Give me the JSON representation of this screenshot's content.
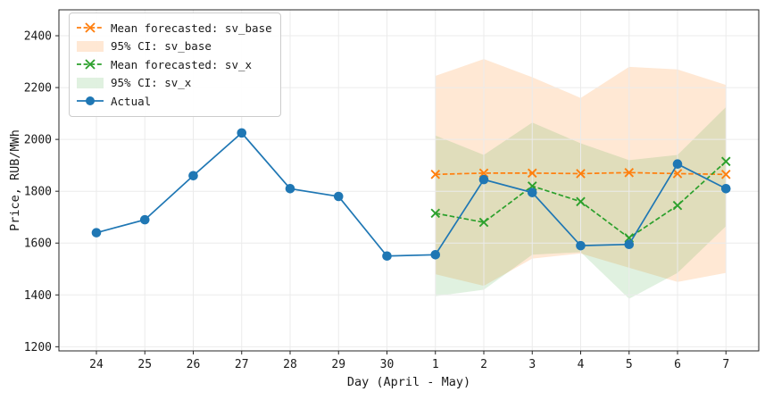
{
  "chart_data": {
    "type": "line",
    "title": "",
    "xlabel": "Day (April - May)",
    "ylabel": "Price, RUB/MWh",
    "x_tick_labels": [
      "24",
      "25",
      "26",
      "27",
      "28",
      "29",
      "30",
      "1",
      "2",
      "3",
      "4",
      "5",
      "6",
      "7"
    ],
    "y_ticks": [
      1200,
      1400,
      1600,
      1800,
      2000,
      2200,
      2400
    ],
    "ylim": [
      1184,
      2500
    ],
    "grid": true,
    "legend_position": "upper left",
    "forecast_start_index": 7,
    "colors": {
      "actual": "#1f77b4",
      "sv_base": "#ff7f0e",
      "sv_x": "#2ca02c",
      "grid": "#ebebeb",
      "spine": "#262626",
      "ci_base_fill_on_white": "#fbe5d6",
      "ci_x_fill_on_white": "#e5f1e3"
    },
    "bands": [
      {
        "name": "95% CI: sv_base",
        "color": "#ff7f0e",
        "opacity": 0.18,
        "start_index": 7,
        "upper": [
          2245,
          2310,
          2240,
          2160,
          2280,
          2270,
          2210
        ],
        "lower": [
          1480,
          1435,
          1540,
          1560,
          1505,
          1450,
          1485
        ]
      },
      {
        "name": "95% CI: sv_x",
        "color": "#2ca02c",
        "opacity": 0.15,
        "start_index": 7,
        "upper": [
          2015,
          1940,
          2065,
          1985,
          1920,
          1940,
          2125
        ],
        "lower": [
          1395,
          1420,
          1555,
          1565,
          1385,
          1485,
          1665
        ]
      }
    ],
    "series": [
      {
        "name": "Mean forecasted: sv_base",
        "color": "#ff7f0e",
        "line_style": "dashed",
        "marker": "x",
        "start_index": 7,
        "values": [
          1865,
          1870,
          1870,
          1868,
          1872,
          1868,
          1865
        ]
      },
      {
        "name": "Mean forecasted: sv_x",
        "color": "#2ca02c",
        "line_style": "dashed",
        "marker": "x",
        "start_index": 7,
        "values": [
          1715,
          1680,
          1820,
          1760,
          1620,
          1745,
          1915
        ]
      },
      {
        "name": "Actual",
        "color": "#1f77b4",
        "line_style": "solid",
        "marker": "circle",
        "start_index": 0,
        "values": [
          1640,
          1690,
          1860,
          2025,
          1810,
          1780,
          1550,
          1555,
          1845,
          1795,
          1590,
          1595,
          1905,
          1810
        ]
      }
    ],
    "legend": [
      {
        "label": "Mean forecasted: sv_base",
        "swatch": "dashed-x-orange"
      },
      {
        "label": "95% CI: sv_base",
        "swatch": "fill-peach"
      },
      {
        "label": "Mean forecasted: sv_x",
        "swatch": "dashed-x-green"
      },
      {
        "label": "95% CI: sv_x",
        "swatch": "fill-mint"
      },
      {
        "label": "Actual",
        "swatch": "line-circle-blue"
      }
    ]
  }
}
